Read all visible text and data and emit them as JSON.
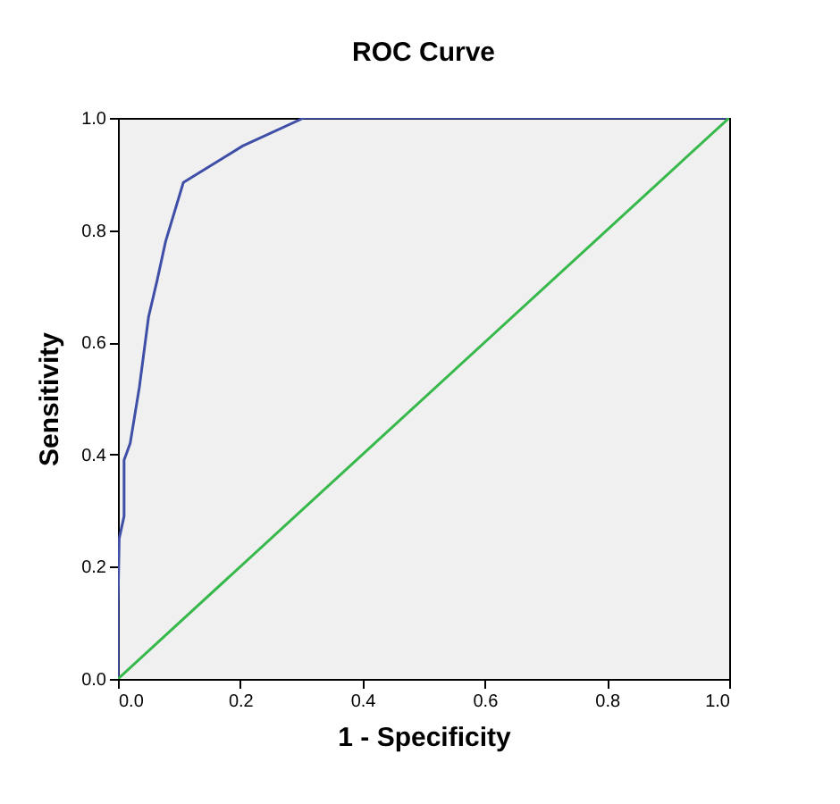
{
  "chart_data": {
    "type": "line",
    "title": "ROC Curve",
    "xlabel": "1 - Specificity",
    "ylabel": "Sensitivity",
    "xlim": [
      0,
      1
    ],
    "ylim": [
      0,
      1
    ],
    "xticks": [
      {
        "value": 0,
        "label": "0.0"
      },
      {
        "value": 0.2,
        "label": "0.2"
      },
      {
        "value": 0.4,
        "label": "0.4"
      },
      {
        "value": 0.6,
        "label": "0.6"
      },
      {
        "value": 0.8,
        "label": "0.8"
      },
      {
        "value": 1,
        "label": "1.0"
      }
    ],
    "yticks": [
      {
        "value": 0,
        "label": "0.0"
      },
      {
        "value": 0.2,
        "label": "0.2"
      },
      {
        "value": 0.4,
        "label": "0.4"
      },
      {
        "value": 0.6,
        "label": "0.6"
      },
      {
        "value": 0.8,
        "label": "0.8"
      },
      {
        "value": 1,
        "label": "1.0"
      }
    ],
    "grid": false,
    "marker": "none",
    "line_style": "solid",
    "series": [
      {
        "color": "#3f4fa8",
        "x": [
          0,
          0,
          0.002,
          0.01,
          0.01,
          0.02,
          0.035,
          0.05,
          0.064,
          0.078,
          0.107,
          0.204,
          0.304,
          1
        ],
        "values": [
          0,
          0.13,
          0.25,
          0.29,
          0.39,
          0.42,
          0.52,
          0.645,
          0.71,
          0.78,
          0.885,
          0.95,
          1,
          1
        ]
      },
      {
        "color": "#36b84a",
        "x": [
          0,
          1
        ],
        "values": [
          0,
          1
        ]
      }
    ]
  }
}
